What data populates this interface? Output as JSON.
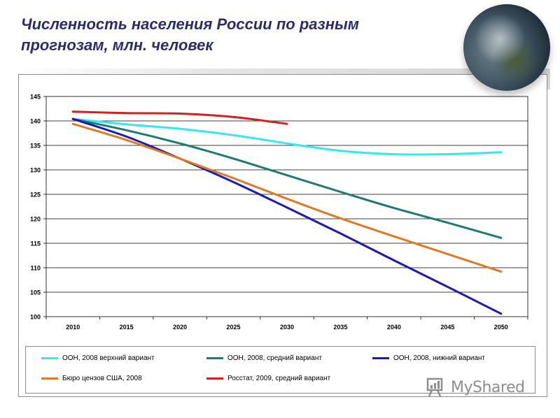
{
  "slide": {
    "title": "Численность населения России по разным прогнозам, млн. человек",
    "watermark": "MyShared"
  },
  "chart_data": {
    "type": "line",
    "title": "",
    "xlabel": "",
    "ylabel": "",
    "x": [
      2010,
      2015,
      2020,
      2025,
      2030,
      2035,
      2040,
      2045,
      2050
    ],
    "xlim": [
      2010,
      2050
    ],
    "ylim": [
      100,
      145
    ],
    "yticks": [
      100,
      105,
      110,
      115,
      120,
      125,
      130,
      135,
      140,
      145
    ],
    "grid": true,
    "legend_position": "bottom",
    "series": [
      {
        "name": "ООН, 2008 верхний вариант",
        "color": "#33e8f0",
        "points": [
          [
            2010,
            140.4
          ],
          [
            2015,
            139.3
          ],
          [
            2020,
            138.4
          ],
          [
            2025,
            137.1
          ],
          [
            2030,
            135.4
          ],
          [
            2035,
            133.9
          ],
          [
            2040,
            133.2
          ],
          [
            2045,
            133.2
          ],
          [
            2050,
            133.6
          ]
        ]
      },
      {
        "name": "ООН, 2008, средний вариант",
        "color": "#1f7a73",
        "points": [
          [
            2010,
            140.4
          ],
          [
            2015,
            138.1
          ],
          [
            2020,
            135.4
          ],
          [
            2025,
            132.3
          ],
          [
            2030,
            128.9
          ],
          [
            2035,
            125.5
          ],
          [
            2040,
            122.2
          ],
          [
            2045,
            119.2
          ],
          [
            2050,
            116.1
          ]
        ]
      },
      {
        "name": "ООН, 2008, нижний вариант",
        "color": "#1a1ab4",
        "points": [
          [
            2010,
            140.4
          ],
          [
            2015,
            136.8
          ],
          [
            2020,
            132.3
          ],
          [
            2025,
            127.5
          ],
          [
            2030,
            122.3
          ],
          [
            2035,
            117.0
          ],
          [
            2040,
            111.5
          ],
          [
            2045,
            106.1
          ],
          [
            2050,
            100.6
          ]
        ]
      },
      {
        "name": "Бюро цензов США, 2008",
        "color": "#e07a22",
        "points": [
          [
            2010,
            139.4
          ],
          [
            2015,
            136.1
          ],
          [
            2020,
            132.3
          ],
          [
            2025,
            128.3
          ],
          [
            2030,
            124.1
          ],
          [
            2035,
            120.1
          ],
          [
            2040,
            116.4
          ],
          [
            2045,
            112.8
          ],
          [
            2050,
            109.2
          ]
        ]
      },
      {
        "name": "Росстат, 2009, средний вариант",
        "color": "#d42020",
        "points": [
          [
            2010,
            141.9
          ],
          [
            2015,
            141.6
          ],
          [
            2020,
            141.5
          ],
          [
            2025,
            140.8
          ],
          [
            2030,
            139.4
          ]
        ]
      }
    ]
  }
}
